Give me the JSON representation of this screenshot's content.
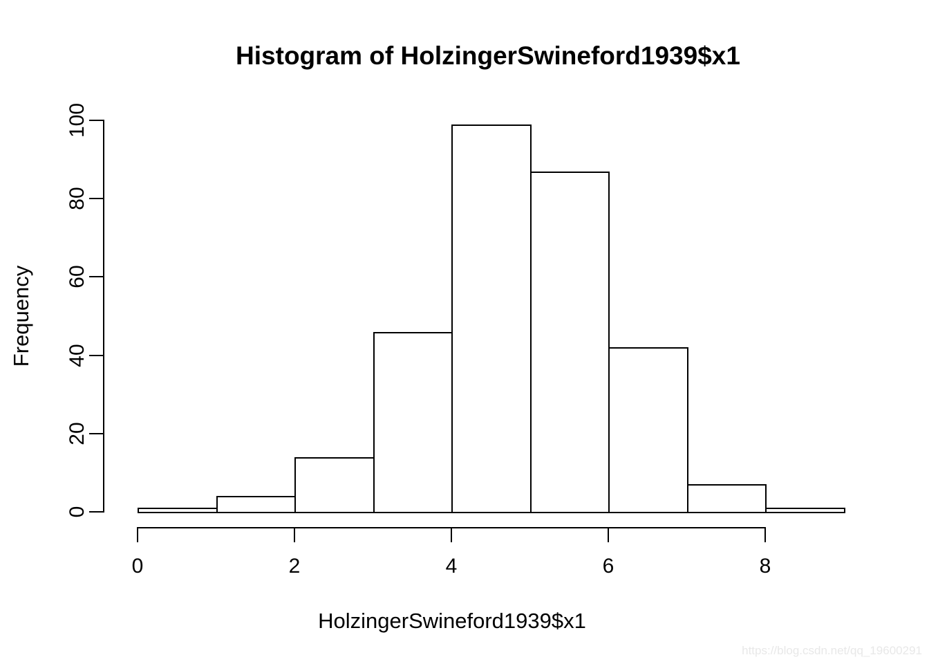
{
  "watermark": "https://blog.csdn.net/qq_19600291",
  "colors": {
    "line": "#000000",
    "text": "#000000",
    "background": "#ffffff",
    "bar_fill": "#ffffff",
    "bar_stroke": "#000000",
    "watermark": "#e8e8e8"
  },
  "chart_data": {
    "type": "bar",
    "subtype": "histogram",
    "title": "Histogram of HolzingerSwineford1939$x1",
    "xlabel": "HolzingerSwineford1939$x1",
    "ylabel": "Frequency",
    "bin_edges": [
      0,
      1,
      2,
      3,
      4,
      5,
      6,
      7,
      8,
      9
    ],
    "counts": [
      1,
      4,
      14,
      46,
      99,
      87,
      42,
      7,
      1
    ],
    "x_ticks": [
      0,
      2,
      4,
      6,
      8
    ],
    "y_ticks": [
      0,
      20,
      40,
      60,
      80,
      100
    ],
    "xlim": [
      0,
      9
    ],
    "ylim": [
      0,
      100
    ],
    "grid": false,
    "legend": false
  }
}
